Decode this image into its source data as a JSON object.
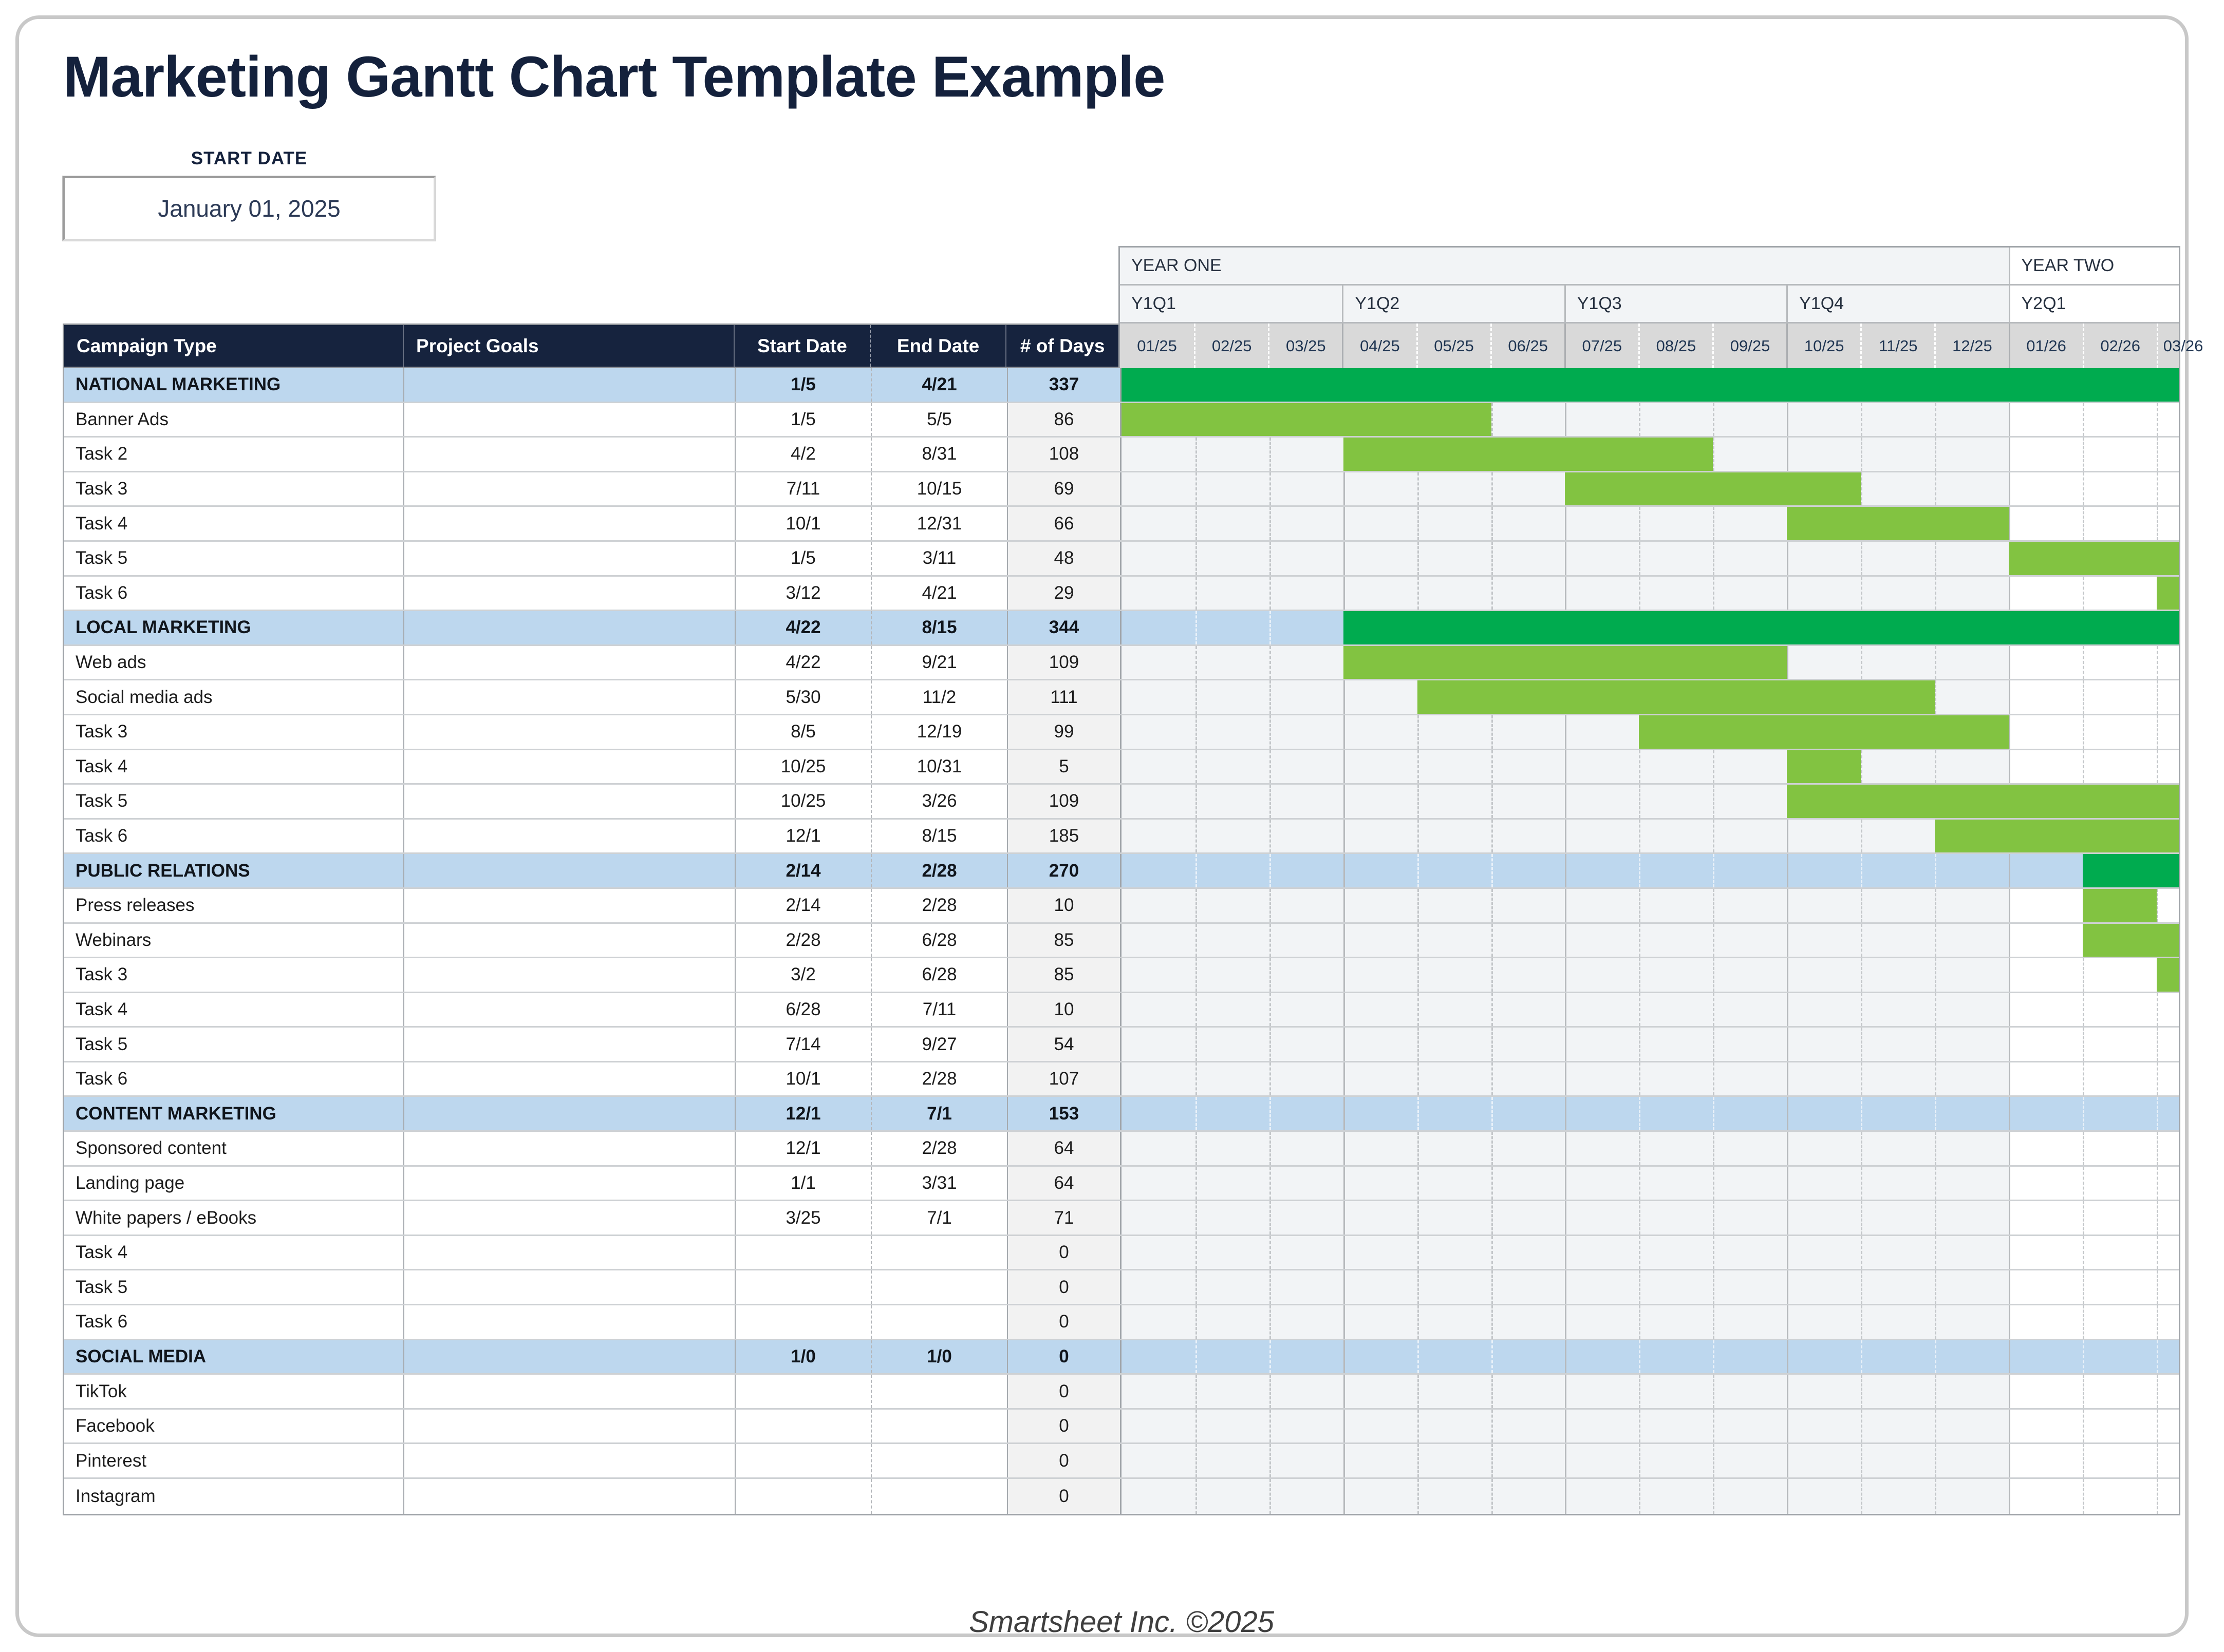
{
  "page": {
    "title": "Marketing Gantt Chart Template Example",
    "footer": "Smartsheet Inc. ©2025"
  },
  "start_date": {
    "label": "START DATE",
    "value": "January 01, 2025"
  },
  "table": {
    "columns": [
      "Campaign Type",
      "Project Goals",
      "Start Date",
      "End Date",
      "# of Days"
    ]
  },
  "chart_data": {
    "type": "bar",
    "variant": "gantt",
    "title": "Marketing Gantt Chart Template Example",
    "axis": {
      "unit": "month",
      "visible_months": 14.3,
      "years": [
        {
          "label": "YEAR ONE",
          "span": 12
        },
        {
          "label": "YEAR TWO",
          "span": 2.3
        }
      ],
      "quarters": [
        {
          "label": "Y1Q1",
          "span": 3
        },
        {
          "label": "Y1Q2",
          "span": 3
        },
        {
          "label": "Y1Q3",
          "span": 3
        },
        {
          "label": "Y1Q4",
          "span": 3
        },
        {
          "label": "Y2Q1",
          "span": 2.3
        }
      ],
      "months": [
        "01/25",
        "02/25",
        "03/25",
        "04/25",
        "05/25",
        "06/25",
        "07/25",
        "08/25",
        "09/25",
        "10/25",
        "11/25",
        "12/25",
        "01/26",
        "02/26",
        "03/26"
      ]
    },
    "tasks": [
      {
        "name": "NATIONAL MARKETING",
        "type": "section",
        "goals": "",
        "start": "1/5",
        "end": "4/21",
        "days": "337",
        "bar": {
          "from": 0,
          "to": 14.3,
          "style": "summary"
        }
      },
      {
        "name": "Banner Ads",
        "type": "task",
        "goals": "",
        "start": "1/5",
        "end": "5/5",
        "days": "86",
        "bar": {
          "from": 0,
          "to": 5,
          "style": "task"
        }
      },
      {
        "name": "Task 2",
        "type": "task",
        "goals": "",
        "start": "4/2",
        "end": "8/31",
        "days": "108",
        "bar": {
          "from": 3,
          "to": 8,
          "style": "task"
        }
      },
      {
        "name": "Task 3",
        "type": "task",
        "goals": "",
        "start": "7/11",
        "end": "10/15",
        "days": "69",
        "bar": {
          "from": 6,
          "to": 10,
          "style": "task"
        }
      },
      {
        "name": "Task 4",
        "type": "task",
        "goals": "",
        "start": "10/1",
        "end": "12/31",
        "days": "66",
        "bar": {
          "from": 9,
          "to": 12,
          "style": "task"
        }
      },
      {
        "name": "Task 5",
        "type": "task",
        "goals": "",
        "start": "1/5",
        "end": "3/11",
        "days": "48",
        "bar": {
          "from": 12,
          "to": 14.3,
          "style": "task"
        }
      },
      {
        "name": "Task 6",
        "type": "task",
        "goals": "",
        "start": "3/12",
        "end": "4/21",
        "days": "29",
        "bar": {
          "from": 14,
          "to": 14.3,
          "style": "task"
        }
      },
      {
        "name": "LOCAL MARKETING",
        "type": "section",
        "goals": "",
        "start": "4/22",
        "end": "8/15",
        "days": "344",
        "bar": {
          "from": 3,
          "to": 14.3,
          "style": "summary"
        }
      },
      {
        "name": "Web ads",
        "type": "task",
        "goals": "",
        "start": "4/22",
        "end": "9/21",
        "days": "109",
        "bar": {
          "from": 3,
          "to": 9,
          "style": "task"
        }
      },
      {
        "name": "Social media ads",
        "type": "task",
        "goals": "",
        "start": "5/30",
        "end": "11/2",
        "days": "111",
        "bar": {
          "from": 4,
          "to": 11,
          "style": "task"
        }
      },
      {
        "name": "Task 3",
        "type": "task",
        "goals": "",
        "start": "8/5",
        "end": "12/19",
        "days": "99",
        "bar": {
          "from": 7,
          "to": 12,
          "style": "task"
        }
      },
      {
        "name": "Task 4",
        "type": "task",
        "goals": "",
        "start": "10/25",
        "end": "10/31",
        "days": "5",
        "bar": {
          "from": 9,
          "to": 10,
          "style": "task"
        }
      },
      {
        "name": "Task 5",
        "type": "task",
        "goals": "",
        "start": "10/25",
        "end": "3/26",
        "days": "109",
        "bar": {
          "from": 9,
          "to": 14.3,
          "style": "task"
        }
      },
      {
        "name": "Task 6",
        "type": "task",
        "goals": "",
        "start": "12/1",
        "end": "8/15",
        "days": "185",
        "bar": {
          "from": 11,
          "to": 14.3,
          "style": "task"
        }
      },
      {
        "name": "PUBLIC RELATIONS",
        "type": "section",
        "goals": "",
        "start": "2/14",
        "end": "2/28",
        "days": "270",
        "bar": {
          "from": 13,
          "to": 14.3,
          "style": "summary"
        }
      },
      {
        "name": "Press releases",
        "type": "task",
        "goals": "",
        "start": "2/14",
        "end": "2/28",
        "days": "10",
        "bar": {
          "from": 13,
          "to": 14,
          "style": "task"
        }
      },
      {
        "name": "Webinars",
        "type": "task",
        "goals": "",
        "start": "2/28",
        "end": "6/28",
        "days": "85",
        "bar": {
          "from": 13,
          "to": 14.3,
          "style": "task"
        }
      },
      {
        "name": "Task 3",
        "type": "task",
        "goals": "",
        "start": "3/2",
        "end": "6/28",
        "days": "85",
        "bar": {
          "from": 14,
          "to": 14.3,
          "style": "task"
        }
      },
      {
        "name": "Task 4",
        "type": "task",
        "goals": "",
        "start": "6/28",
        "end": "7/11",
        "days": "10",
        "bar": null
      },
      {
        "name": "Task 5",
        "type": "task",
        "goals": "",
        "start": "7/14",
        "end": "9/27",
        "days": "54",
        "bar": null
      },
      {
        "name": "Task 6",
        "type": "task",
        "goals": "",
        "start": "10/1",
        "end": "2/28",
        "days": "107",
        "bar": null
      },
      {
        "name": "CONTENT MARKETING",
        "type": "section",
        "goals": "",
        "start": "12/1",
        "end": "7/1",
        "days": "153",
        "bar": null
      },
      {
        "name": "Sponsored content",
        "type": "task",
        "goals": "",
        "start": "12/1",
        "end": "2/28",
        "days": "64",
        "bar": null
      },
      {
        "name": "Landing page",
        "type": "task",
        "goals": "",
        "start": "1/1",
        "end": "3/31",
        "days": "64",
        "bar": null
      },
      {
        "name": "White papers / eBooks",
        "type": "task",
        "goals": "",
        "start": "3/25",
        "end": "7/1",
        "days": "71",
        "bar": null
      },
      {
        "name": "Task 4",
        "type": "task",
        "goals": "",
        "start": "",
        "end": "",
        "days": "0",
        "bar": null
      },
      {
        "name": "Task 5",
        "type": "task",
        "goals": "",
        "start": "",
        "end": "",
        "days": "0",
        "bar": null
      },
      {
        "name": "Task 6",
        "type": "task",
        "goals": "",
        "start": "",
        "end": "",
        "days": "0",
        "bar": null
      },
      {
        "name": "SOCIAL MEDIA",
        "type": "section",
        "goals": "",
        "start": "1/0",
        "end": "1/0",
        "days": "0",
        "bar": null
      },
      {
        "name": "TikTok",
        "type": "task",
        "goals": "",
        "start": "",
        "end": "",
        "days": "0",
        "bar": null
      },
      {
        "name": "Facebook",
        "type": "task",
        "goals": "",
        "start": "",
        "end": "",
        "days": "0",
        "bar": null
      },
      {
        "name": "Pinterest",
        "type": "task",
        "goals": "",
        "start": "",
        "end": "",
        "days": "0",
        "bar": null
      },
      {
        "name": "Instagram",
        "type": "task",
        "goals": "",
        "start": "",
        "end": "",
        "days": "0",
        "bar": null
      }
    ]
  },
  "colors": {
    "navy": "#16233e",
    "blue": "#bdd7ee",
    "green-dark": "#00ab4f",
    "green-light": "#82c341",
    "month-bg": "#d9d9d9",
    "y1-bg": "#f2f4f6",
    "days-bg": "#f2f2f2",
    "row-border": "#ced1d4",
    "col-border": "#a6aaaf",
    "grid-solid": "#b6b9bc",
    "grid-dash": "#c3c6c9",
    "title": "#14213c",
    "text": "#1d1d1d",
    "footer": "#3f3f3f"
  }
}
